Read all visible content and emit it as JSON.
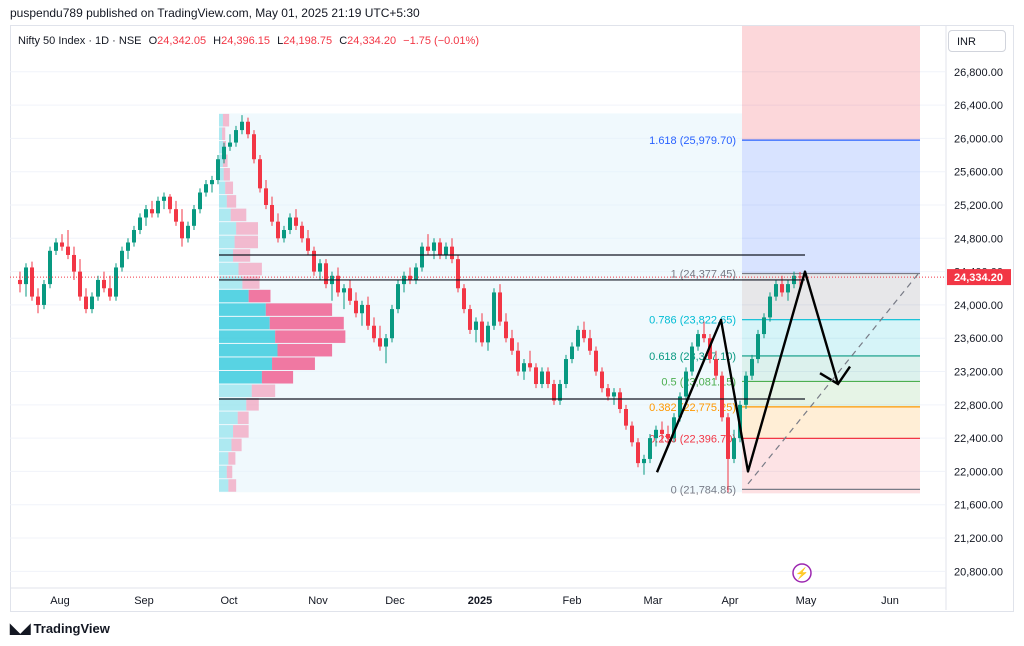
{
  "header": {
    "published": "puspendu789 published on TradingView.com, May 01, 2025 21:19 UTC+5:30"
  },
  "legend": {
    "symbol": "Nifty 50 Index · 1D · NSE",
    "o_label": "O",
    "o_value": "24,342.05",
    "h_label": "H",
    "h_value": "24,396.15",
    "l_label": "L",
    "l_value": "24,198.75",
    "c_label": "C",
    "c_value": "24,334.20",
    "change": "−1.75 (−0.01%)"
  },
  "currency": "INR",
  "footer": {
    "brand": "TradingView",
    "logo_icon": "tradingview-logo-icon"
  },
  "chart_data": {
    "type": "candlestick",
    "x_tick_labels": [
      "Aug",
      "Sep",
      "Oct",
      "Nov",
      "Dec",
      "2025",
      "Feb",
      "Mar",
      "Apr",
      "May",
      "Jun"
    ],
    "y_ticks": [
      20800,
      21200,
      21600,
      22000,
      22400,
      22800,
      23200,
      23600,
      24000,
      24400,
      24800,
      25200,
      25600,
      26000,
      26400,
      26800
    ],
    "y_tick_labels": [
      "20,800.00",
      "21,200.00",
      "21,600.00",
      "22,000.00",
      "22,400.00",
      "22,800.00",
      "23,200.00",
      "23,600.00",
      "24,000.00",
      "24,400.00",
      "24,800.00",
      "25,200.00",
      "25,600.00",
      "26,000.00",
      "26,400.00",
      "26,800.00"
    ],
    "y_range": [
      20600,
      27350
    ],
    "last_price": 24334.2,
    "last_price_label": "24,334.20",
    "colors": {
      "up": "#089981",
      "down": "#f23645",
      "last_price": "#f23645"
    },
    "candles": [
      [
        24300,
        24400,
        24150,
        24250
      ],
      [
        24250,
        24500,
        24100,
        24450
      ],
      [
        24450,
        24520,
        24050,
        24100
      ],
      [
        24100,
        24200,
        23900,
        24000
      ],
      [
        24000,
        24300,
        23950,
        24250
      ],
      [
        24250,
        24700,
        24200,
        24650
      ],
      [
        24650,
        24800,
        24600,
        24750
      ],
      [
        24750,
        24850,
        24650,
        24700
      ],
      [
        24700,
        24900,
        24550,
        24600
      ],
      [
        24600,
        24700,
        24300,
        24400
      ],
      [
        24400,
        24550,
        24050,
        24100
      ],
      [
        24100,
        24200,
        23900,
        23950
      ],
      [
        23950,
        24150,
        23900,
        24100
      ],
      [
        24100,
        24350,
        24050,
        24300
      ],
      [
        24300,
        24400,
        24150,
        24200
      ],
      [
        24200,
        24350,
        24050,
        24100
      ],
      [
        24100,
        24500,
        24050,
        24450
      ],
      [
        24450,
        24700,
        24400,
        24650
      ],
      [
        24650,
        24800,
        24550,
        24750
      ],
      [
        24750,
        24950,
        24700,
        24900
      ],
      [
        24900,
        25100,
        24850,
        25050
      ],
      [
        25050,
        25200,
        24950,
        25150
      ],
      [
        25150,
        25250,
        25050,
        25100
      ],
      [
        25100,
        25300,
        25050,
        25250
      ],
      [
        25250,
        25350,
        25150,
        25300
      ],
      [
        25300,
        25330,
        25100,
        25150
      ],
      [
        25150,
        25250,
        24950,
        25000
      ],
      [
        25000,
        25150,
        24700,
        24800
      ],
      [
        24800,
        25000,
        24750,
        24950
      ],
      [
        24950,
        25200,
        24900,
        25150
      ],
      [
        25150,
        25400,
        25100,
        25350
      ],
      [
        25350,
        25500,
        25300,
        25450
      ],
      [
        25450,
        25550,
        25350,
        25500
      ],
      [
        25500,
        25800,
        25450,
        25750
      ],
      [
        25750,
        25950,
        25700,
        25900
      ],
      [
        25900,
        26050,
        25850,
        25950
      ],
      [
        25950,
        26150,
        25900,
        26100
      ],
      [
        26100,
        26280,
        26050,
        26200
      ],
      [
        26200,
        26250,
        26000,
        26050
      ],
      [
        26050,
        26100,
        25700,
        25750
      ],
      [
        25750,
        25800,
        25350,
        25400
      ],
      [
        25400,
        25500,
        25150,
        25200
      ],
      [
        25200,
        25300,
        24950,
        25000
      ],
      [
        25000,
        25100,
        24750,
        24800
      ],
      [
        24800,
        24950,
        24750,
        24900
      ],
      [
        24900,
        25100,
        24850,
        25050
      ],
      [
        25050,
        25150,
        24900,
        24950
      ],
      [
        24950,
        25000,
        24750,
        24800
      ],
      [
        24800,
        24900,
        24600,
        24650
      ],
      [
        24650,
        24700,
        24350,
        24400
      ],
      [
        24400,
        24550,
        24300,
        24500
      ],
      [
        24500,
        24550,
        24200,
        24250
      ],
      [
        24250,
        24400,
        24050,
        24350
      ],
      [
        24350,
        24450,
        24100,
        24150
      ],
      [
        24150,
        24250,
        23950,
        24200
      ],
      [
        24200,
        24300,
        24000,
        24050
      ],
      [
        24050,
        24150,
        23850,
        23900
      ],
      [
        23900,
        24050,
        23750,
        24000
      ],
      [
        24000,
        24100,
        23700,
        23750
      ],
      [
        23750,
        23850,
        23550,
        23600
      ],
      [
        23600,
        23750,
        23450,
        23500
      ],
      [
        23500,
        23650,
        23300,
        23600
      ],
      [
        23600,
        24000,
        23550,
        23950
      ],
      [
        23950,
        24300,
        23900,
        24250
      ],
      [
        24250,
        24400,
        24150,
        24350
      ],
      [
        24350,
        24450,
        24250,
        24300
      ],
      [
        24300,
        24500,
        24250,
        24450
      ],
      [
        24450,
        24750,
        24400,
        24700
      ],
      [
        24700,
        24850,
        24600,
        24650
      ],
      [
        24650,
        24800,
        24550,
        24750
      ],
      [
        24750,
        24800,
        24550,
        24600
      ],
      [
        24600,
        24750,
        24550,
        24700
      ],
      [
        24700,
        24800,
        24500,
        24550
      ],
      [
        24550,
        24600,
        24150,
        24200
      ],
      [
        24200,
        24250,
        23900,
        23950
      ],
      [
        23950,
        24000,
        23650,
        23700
      ],
      [
        23700,
        23850,
        23550,
        23800
      ],
      [
        23800,
        23900,
        23500,
        23550
      ],
      [
        23550,
        23800,
        23450,
        23750
      ],
      [
        23750,
        24200,
        23700,
        24150
      ],
      [
        24150,
        24250,
        23750,
        23800
      ],
      [
        23800,
        23900,
        23550,
        23600
      ],
      [
        23600,
        23700,
        23400,
        23450
      ],
      [
        23450,
        23550,
        23150,
        23200
      ],
      [
        23200,
        23350,
        23100,
        23300
      ],
      [
        23300,
        23450,
        23200,
        23250
      ],
      [
        23250,
        23300,
        23000,
        23050
      ],
      [
        23050,
        23250,
        23000,
        23200
      ],
      [
        23200,
        23250,
        23000,
        23050
      ],
      [
        23050,
        23100,
        22800,
        22850
      ],
      [
        22850,
        23100,
        22800,
        23050
      ],
      [
        23050,
        23400,
        23000,
        23350
      ],
      [
        23350,
        23550,
        23300,
        23500
      ],
      [
        23500,
        23750,
        23450,
        23700
      ],
      [
        23700,
        23800,
        23550,
        23600
      ],
      [
        23600,
        23700,
        23400,
        23450
      ],
      [
        23450,
        23500,
        23150,
        23200
      ],
      [
        23200,
        23250,
        22950,
        23000
      ],
      [
        23000,
        23050,
        22850,
        22900
      ],
      [
        22900,
        23000,
        22800,
        22950
      ],
      [
        22950,
        23000,
        22700,
        22750
      ],
      [
        22750,
        22800,
        22500,
        22550
      ],
      [
        22550,
        22600,
        22300,
        22350
      ],
      [
        22350,
        22400,
        22050,
        22100
      ],
      [
        22100,
        22200,
        21960,
        22150
      ],
      [
        22150,
        22450,
        22100,
        22400
      ],
      [
        22400,
        22550,
        22300,
        22500
      ],
      [
        22500,
        22600,
        22350,
        22450
      ],
      [
        22450,
        22550,
        22300,
        22400
      ],
      [
        22400,
        22700,
        22350,
        22650
      ],
      [
        22650,
        22950,
        22600,
        22900
      ],
      [
        22900,
        23250,
        22850,
        23200
      ],
      [
        23200,
        23550,
        23150,
        23500
      ],
      [
        23500,
        23700,
        23450,
        23650
      ],
      [
        23650,
        23800,
        23550,
        23600
      ],
      [
        23600,
        23650,
        23300,
        23350
      ],
      [
        23350,
        23450,
        23100,
        23150
      ],
      [
        23150,
        23200,
        22600,
        22650
      ],
      [
        22650,
        22700,
        21750,
        22150
      ],
      [
        22150,
        22500,
        22100,
        22400
      ],
      [
        22400,
        22850,
        22350,
        22800
      ],
      [
        22800,
        23200,
        22750,
        23150
      ],
      [
        23150,
        23400,
        23100,
        23350
      ],
      [
        23350,
        23700,
        23300,
        23650
      ],
      [
        23650,
        23900,
        23600,
        23850
      ],
      [
        23850,
        24150,
        23800,
        24100
      ],
      [
        24100,
        24300,
        24050,
        24250
      ],
      [
        24250,
        24350,
        24100,
        24150
      ],
      [
        24150,
        24300,
        24050,
        24250
      ],
      [
        24250,
        24400,
        24200,
        24350
      ],
      [
        24342,
        24396,
        24199,
        24334
      ]
    ],
    "fib_levels": [
      {
        "ratio": "1.618",
        "value": 25979.7,
        "label": "1.618 (25,979.70)",
        "color": "#2962ff"
      },
      {
        "ratio": "1",
        "value": 24377.45,
        "label": "1 (24,377.45)",
        "color": "#787b86"
      },
      {
        "ratio": "0.786",
        "value": 23822.65,
        "label": "0.786 (23,822.65)",
        "color": "#00bcd4"
      },
      {
        "ratio": "0.618",
        "value": 23387.1,
        "label": "0.618 (23,387.10)",
        "color": "#089981"
      },
      {
        "ratio": "0.5",
        "value": 23081.15,
        "label": "0.5 (23,081.15)",
        "color": "#4caf50"
      },
      {
        "ratio": "0.382",
        "value": 22775.25,
        "label": "0.382 (22,775.25)",
        "color": "#ff9800"
      },
      {
        "ratio": "0.236",
        "value": 22396.7,
        "label": "0.236 (22,396.70)",
        "color": "#f23645"
      },
      {
        "ratio": "0",
        "value": 21784.85,
        "label": "0 (21,784.85)",
        "color": "#787b86"
      }
    ],
    "horizontal_levels": [
      24600,
      24300,
      22870
    ],
    "volume_profile": {
      "price_low": 21750,
      "price_high": 26300,
      "rows": [
        [
          0.12,
          0.1
        ],
        [
          0.1,
          0.07
        ],
        [
          0.12,
          0.09
        ],
        [
          0.16,
          0.13
        ],
        [
          0.18,
          0.2
        ],
        [
          0.24,
          0.14
        ],
        [
          0.35,
          0.16
        ],
        [
          0.42,
          0.3
        ],
        [
          0.55,
          0.4
        ],
        [
          0.68,
          0.55
        ],
        [
          0.75,
          0.7
        ],
        [
          0.72,
          0.9
        ],
        [
          0.65,
          0.95
        ],
        [
          0.6,
          0.85
        ],
        [
          0.38,
          0.28
        ],
        [
          0.3,
          0.22
        ],
        [
          0.25,
          0.3
        ],
        [
          0.18,
          0.22
        ],
        [
          0.2,
          0.3
        ],
        [
          0.22,
          0.28
        ],
        [
          0.15,
          0.2
        ],
        [
          0.1,
          0.12
        ],
        [
          0.08,
          0.1
        ],
        [
          0.06,
          0.08
        ],
        [
          0.05,
          0.06
        ],
        [
          0.05,
          0.04
        ],
        [
          0.04,
          0.04
        ],
        [
          0.05,
          0.08
        ]
      ]
    },
    "projection_path": [
      [
        21900,
        23850,
        23200,
        24370
      ]
    ]
  }
}
